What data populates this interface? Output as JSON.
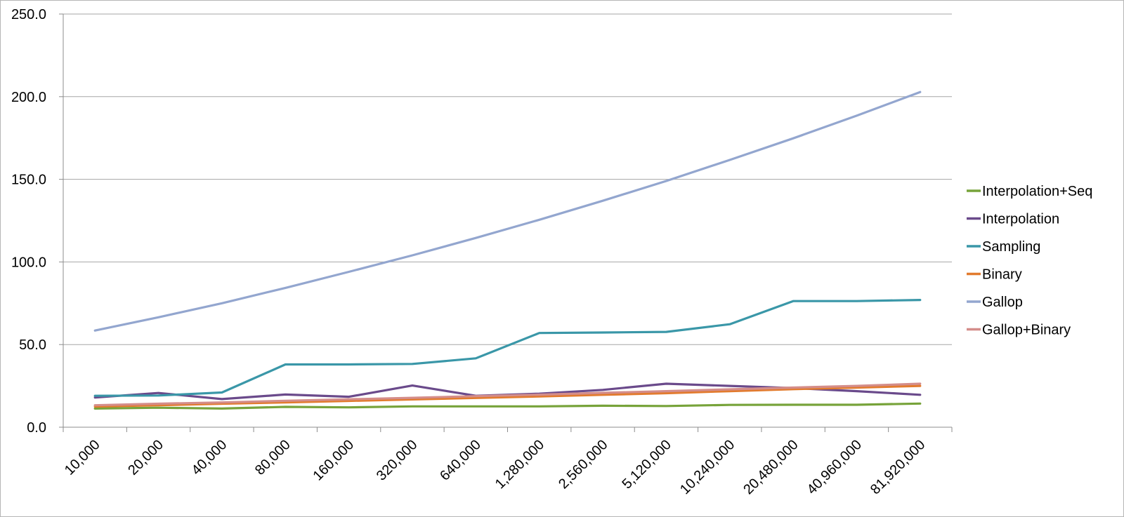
{
  "chart_data": {
    "type": "line",
    "title": "",
    "xlabel": "",
    "ylabel": "",
    "categories": [
      "10,000",
      "20,000",
      "40,000",
      "80,000",
      "160,000",
      "320,000",
      "640,000",
      "1,280,000",
      "2,560,000",
      "5,120,000",
      "10,240,000",
      "20,480,000",
      "40,960,000",
      "81,920,000"
    ],
    "ylim": [
      0,
      250
    ],
    "yticks": [
      "0.0",
      "50.0",
      "100.0",
      "150.0",
      "200.0",
      "250.0"
    ],
    "ytick_values": [
      0,
      50,
      100,
      150,
      200,
      250
    ],
    "grid": true,
    "legend_position": "right",
    "series": [
      {
        "name": "Interpolation+Seq",
        "color": "#77a33a",
        "values": [
          11.3,
          11.8,
          11.3,
          12.3,
          12.0,
          12.6,
          12.6,
          12.6,
          13.0,
          12.8,
          13.5,
          13.6,
          13.6,
          14.3
        ]
      },
      {
        "name": "Interpolation",
        "color": "#6a4a8b",
        "values": [
          18.0,
          20.7,
          17.0,
          19.8,
          18.4,
          25.2,
          19.0,
          20.3,
          22.6,
          26.3,
          25.0,
          23.7,
          21.8,
          19.6
        ]
      },
      {
        "name": "Sampling",
        "color": "#3a97a8",
        "values": [
          19.0,
          19.2,
          21.0,
          38.0,
          38.0,
          38.3,
          41.7,
          57.0,
          57.3,
          57.7,
          62.3,
          76.3,
          76.3,
          77.0
        ]
      },
      {
        "name": "Binary",
        "color": "#e27b2e",
        "values": [
          12.5,
          13.3,
          14.2,
          15.0,
          15.9,
          16.8,
          17.7,
          18.6,
          19.6,
          20.6,
          21.8,
          23.0,
          24.0,
          25.0
        ]
      },
      {
        "name": "Gallop",
        "color": "#93a6cf",
        "values": [
          58.5,
          66.5,
          75.0,
          84.3,
          94.0,
          104.0,
          114.5,
          125.5,
          137.0,
          149.0,
          161.7,
          174.8,
          188.5,
          202.8
        ]
      },
      {
        "name": "Gallop+Binary",
        "color": "#d48d8a",
        "values": [
          13.3,
          14.2,
          15.0,
          16.0,
          16.9,
          17.8,
          18.8,
          19.7,
          20.8,
          21.8,
          22.9,
          24.0,
          25.0,
          26.3
        ]
      }
    ]
  }
}
